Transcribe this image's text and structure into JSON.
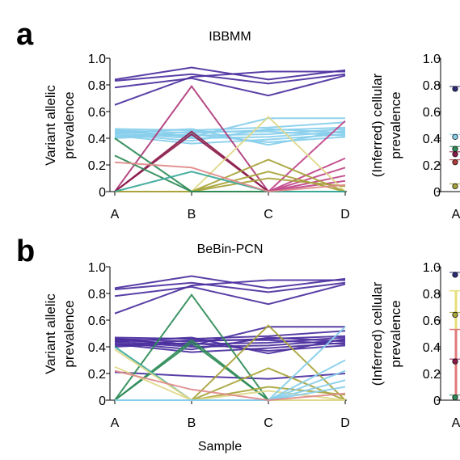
{
  "figure": {
    "panel_a_letter": "a",
    "panel_b_letter": "b",
    "shared_xlabel": "Sample"
  },
  "chart_data": [
    {
      "id": "panel-a-left",
      "type": "line",
      "title": "IBBMM",
      "ylabel": [
        "Variant allelic",
        "prevalence"
      ],
      "xlabel": "",
      "categories": [
        "A",
        "B",
        "C",
        "D"
      ],
      "yticks": [
        "0",
        "0.2",
        "0.4",
        "0.6",
        "0.8",
        "1.0"
      ],
      "ylim": [
        0,
        1
      ],
      "series": [
        {
          "color": "#4b2f9e",
          "values": [
            0.84,
            0.93,
            0.84,
            0.91
          ]
        },
        {
          "color": "#4b2f9e",
          "values": [
            0.83,
            0.88,
            0.81,
            0.88
          ]
        },
        {
          "color": "#4b2f9e",
          "values": [
            0.78,
            0.85,
            0.72,
            0.87
          ]
        },
        {
          "color": "#4b2f9e",
          "values": [
            0.65,
            0.86,
            0.9,
            0.9
          ]
        },
        {
          "color": "#87ceeb",
          "values": [
            0.47,
            0.46,
            0.48,
            0.52
          ]
        },
        {
          "color": "#87ceeb",
          "values": [
            0.46,
            0.44,
            0.46,
            0.48
          ]
        },
        {
          "color": "#87ceeb",
          "values": [
            0.45,
            0.42,
            0.43,
            0.47
          ]
        },
        {
          "color": "#87ceeb",
          "values": [
            0.44,
            0.4,
            0.41,
            0.45
          ]
        },
        {
          "color": "#87ceeb",
          "values": [
            0.43,
            0.38,
            0.47,
            0.44
          ]
        },
        {
          "color": "#87ceeb",
          "values": [
            0.42,
            0.36,
            0.39,
            0.43
          ]
        },
        {
          "color": "#87ceeb",
          "values": [
            0.41,
            0.45,
            0.45,
            0.42
          ]
        },
        {
          "color": "#87ceeb",
          "values": [
            0.46,
            0.41,
            0.55,
            0.55
          ]
        },
        {
          "color": "#87ceeb",
          "values": [
            0.4,
            0.43,
            0.37,
            0.41
          ]
        },
        {
          "color": "#87ceeb",
          "values": [
            0.44,
            0.47,
            0.35,
            0.46
          ]
        },
        {
          "color": "#b03a7a",
          "values": [
            0.0,
            0.79,
            0.0,
            0.0
          ]
        },
        {
          "color": "#8b1a4a",
          "values": [
            0.0,
            0.45,
            0.0,
            0.0
          ]
        },
        {
          "color": "#8b1a4a",
          "values": [
            0.0,
            0.43,
            0.0,
            0.0
          ]
        },
        {
          "color": "#c0448a",
          "values": [
            0.0,
            0.0,
            0.0,
            0.53
          ]
        },
        {
          "color": "#c0448a",
          "values": [
            0.0,
            0.0,
            0.0,
            0.25
          ]
        },
        {
          "color": "#c0448a",
          "values": [
            0.0,
            0.0,
            0.0,
            0.18
          ]
        },
        {
          "color": "#c0448a",
          "values": [
            0.0,
            0.0,
            0.0,
            0.12
          ]
        },
        {
          "color": "#c0448a",
          "values": [
            0.0,
            0.0,
            0.0,
            0.08
          ]
        },
        {
          "color": "#e0d88a",
          "values": [
            0.0,
            0.0,
            0.56,
            0.0
          ]
        },
        {
          "color": "#a8a43a",
          "values": [
            0.0,
            0.0,
            0.24,
            0.0
          ]
        },
        {
          "color": "#a8a43a",
          "values": [
            0.0,
            0.0,
            0.15,
            0.0
          ]
        },
        {
          "color": "#a8a43a",
          "values": [
            0.0,
            0.0,
            0.1,
            0.04
          ]
        },
        {
          "color": "#2e8b57",
          "values": [
            0.4,
            0.0,
            0.0,
            0.0
          ]
        },
        {
          "color": "#2e8b57",
          "values": [
            0.27,
            0.0,
            0.0,
            0.0
          ]
        },
        {
          "color": "#3aa89a",
          "values": [
            0.0,
            0.15,
            0.0,
            0.0
          ]
        },
        {
          "color": "#e08a8a",
          "values": [
            0.22,
            0.18,
            0.0,
            0.05
          ]
        }
      ]
    },
    {
      "id": "panel-a-right",
      "type": "scatter",
      "ylabel": [
        "(Inferred) cellular",
        "prevalence"
      ],
      "categories": [
        "A"
      ],
      "yticks": [
        "0",
        "0.2",
        "0.4",
        "0.6",
        "0.8",
        "1.0"
      ],
      "ylim": [
        0,
        1
      ],
      "points": [
        {
          "y": 0.77,
          "color": "#2c2c7a"
        },
        {
          "y": 0.41,
          "color": "#87ceeb"
        },
        {
          "y": 0.32,
          "color": "#2e8b57"
        },
        {
          "y": 0.28,
          "color": "#8b1a4a"
        },
        {
          "y": 0.22,
          "color": "#b03a3a"
        },
        {
          "y": 0.04,
          "color": "#a8a43a"
        }
      ]
    },
    {
      "id": "panel-b-left",
      "type": "line",
      "title": "BeBin-PCN",
      "ylabel": [
        "Variant allelic",
        "prevalence"
      ],
      "xlabel": "Sample",
      "categories": [
        "A",
        "B",
        "C",
        "D"
      ],
      "yticks": [
        "0",
        "0.2",
        "0.4",
        "0.6",
        "0.8",
        "1.0"
      ],
      "ylim": [
        0,
        1
      ],
      "series": [
        {
          "color": "#4b2f9e",
          "values": [
            0.84,
            0.93,
            0.84,
            0.91
          ]
        },
        {
          "color": "#4b2f9e",
          "values": [
            0.83,
            0.88,
            0.81,
            0.88
          ]
        },
        {
          "color": "#4b2f9e",
          "values": [
            0.78,
            0.85,
            0.72,
            0.87
          ]
        },
        {
          "color": "#4b2f9e",
          "values": [
            0.65,
            0.86,
            0.9,
            0.9
          ]
        },
        {
          "color": "#4b2f9e",
          "values": [
            0.47,
            0.46,
            0.48,
            0.52
          ]
        },
        {
          "color": "#4b2f9e",
          "values": [
            0.46,
            0.44,
            0.46,
            0.48
          ]
        },
        {
          "color": "#4b2f9e",
          "values": [
            0.45,
            0.42,
            0.43,
            0.47
          ]
        },
        {
          "color": "#4b2f9e",
          "values": [
            0.44,
            0.4,
            0.41,
            0.45
          ]
        },
        {
          "color": "#4b2f9e",
          "values": [
            0.43,
            0.38,
            0.47,
            0.44
          ]
        },
        {
          "color": "#4b2f9e",
          "values": [
            0.42,
            0.36,
            0.39,
            0.43
          ]
        },
        {
          "color": "#4b2f9e",
          "values": [
            0.41,
            0.45,
            0.45,
            0.42
          ]
        },
        {
          "color": "#4b2f9e",
          "values": [
            0.46,
            0.41,
            0.55,
            0.55
          ]
        },
        {
          "color": "#4b2f9e",
          "values": [
            0.4,
            0.43,
            0.37,
            0.41
          ]
        },
        {
          "color": "#4b2f9e",
          "values": [
            0.44,
            0.47,
            0.35,
            0.46
          ]
        },
        {
          "color": "#4b2f9e",
          "values": [
            0.21,
            0.18,
            0.16,
            0.2
          ]
        },
        {
          "color": "#2e8b57",
          "values": [
            0.0,
            0.79,
            0.0,
            0.0
          ]
        },
        {
          "color": "#2e8b57",
          "values": [
            0.0,
            0.45,
            0.0,
            0.0
          ]
        },
        {
          "color": "#2e8b57",
          "values": [
            0.0,
            0.43,
            0.0,
            0.0
          ]
        },
        {
          "color": "#3aa89a",
          "values": [
            0.4,
            0.0,
            0.0,
            0.0
          ]
        },
        {
          "color": "#a8a43a",
          "values": [
            0.0,
            0.0,
            0.56,
            0.0
          ]
        },
        {
          "color": "#a8a43a",
          "values": [
            0.0,
            0.0,
            0.24,
            0.0
          ]
        },
        {
          "color": "#a8a43a",
          "values": [
            0.0,
            0.0,
            0.1,
            0.04
          ]
        },
        {
          "color": "#e0d88a",
          "values": [
            0.38,
            0.0,
            0.0,
            0.0
          ]
        },
        {
          "color": "#e0d88a",
          "values": [
            0.25,
            0.0,
            0.0,
            0.0
          ]
        },
        {
          "color": "#e0d88a",
          "values": [
            0.0,
            0.0,
            0.07,
            0.0
          ]
        },
        {
          "color": "#87ceeb",
          "values": [
            0.0,
            0.0,
            0.0,
            0.55
          ]
        },
        {
          "color": "#87ceeb",
          "values": [
            0.0,
            0.0,
            0.0,
            0.3
          ]
        },
        {
          "color": "#87ceeb",
          "values": [
            0.0,
            0.0,
            0.0,
            0.22
          ]
        },
        {
          "color": "#87ceeb",
          "values": [
            0.0,
            0.0,
            0.0,
            0.15
          ]
        },
        {
          "color": "#87ceeb",
          "values": [
            0.0,
            0.0,
            0.0,
            0.1
          ]
        },
        {
          "color": "#e08a8a",
          "values": [
            0.22,
            0.08,
            0.0,
            0.05
          ]
        }
      ]
    },
    {
      "id": "panel-b-right",
      "type": "scatter",
      "ylabel": [
        "(Inferred) cellular",
        "prevalence"
      ],
      "categories": [
        "A"
      ],
      "yticks": [
        "0",
        "0.2",
        "0.4",
        "0.6",
        "0.8",
        "1.0"
      ],
      "ylim": [
        0,
        1
      ],
      "points": [
        {
          "y": 0.94,
          "color": "#2c2c7a"
        },
        {
          "y": 0.64,
          "color": "#a8a43a"
        },
        {
          "y": 0.29,
          "color": "#8b1a4a"
        },
        {
          "y": 0.02,
          "color": "#2e8b57"
        }
      ],
      "bands": [
        {
          "from": 0.0,
          "to": 0.82,
          "color": "#e6df7a"
        },
        {
          "from": 0.0,
          "to": 0.53,
          "color": "#e07a7a"
        }
      ]
    }
  ]
}
